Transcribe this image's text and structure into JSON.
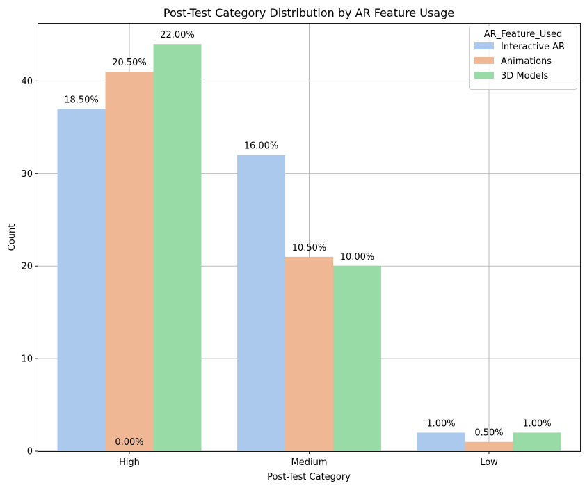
{
  "chart_data": {
    "type": "bar",
    "title": "Post-Test Category Distribution by AR Feature Usage",
    "xlabel": "Post-Test Category",
    "ylabel": "Count",
    "categories": [
      "High",
      "Medium",
      "Low"
    ],
    "ylim": [
      0,
      46.2
    ],
    "yticks": [
      0,
      10,
      20,
      30,
      40
    ],
    "grid": true,
    "legend": {
      "title": "AR_Feature_Used",
      "placement": "top-right"
    },
    "series": [
      {
        "name": "Interactive AR",
        "color": "#abc9ed",
        "values": [
          37,
          32,
          2
        ],
        "labels": [
          "18.50%",
          "16.00%",
          "1.00%"
        ]
      },
      {
        "name": "Animations",
        "color": "#f0b794",
        "values": [
          41,
          21,
          1
        ],
        "labels": [
          "20.50%",
          "10.50%",
          "0.50%"
        ]
      },
      {
        "name": "3D Models",
        "color": "#99dba6",
        "values": [
          44,
          20,
          2
        ],
        "labels": [
          "22.00%",
          "10.00%",
          "1.00%"
        ]
      }
    ],
    "annotations": [
      {
        "category": "High",
        "text": "0.00%"
      }
    ]
  }
}
